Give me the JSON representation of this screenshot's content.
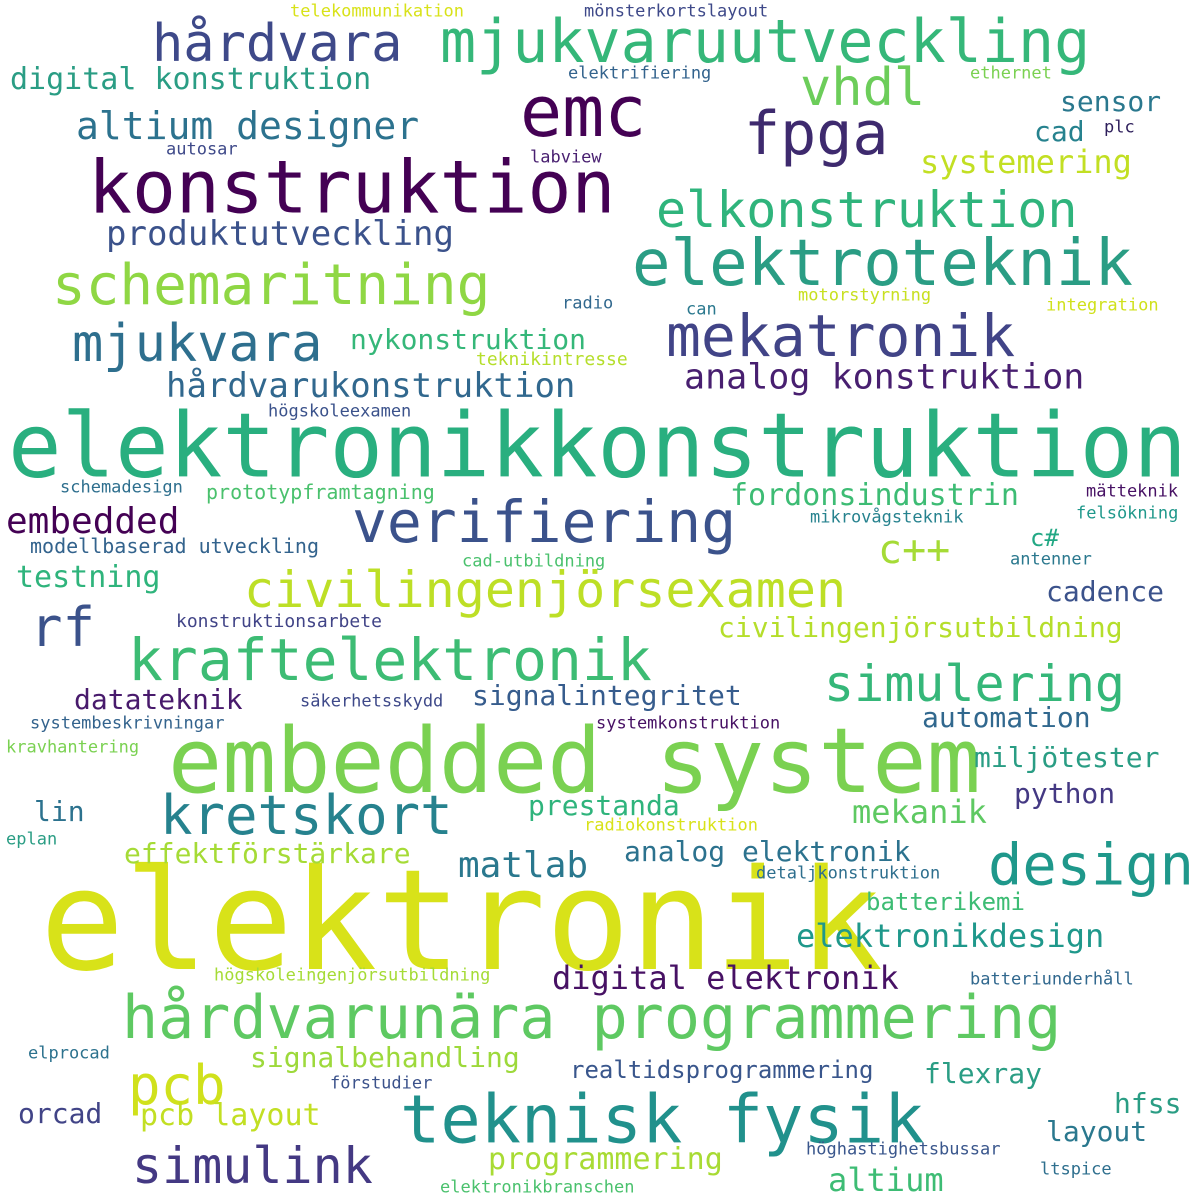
{
  "words": [
    {
      "text": "elektronik",
      "color": "#d8e219"
    },
    {
      "text": "elektronikkonstruktion",
      "color": "#29af7f"
    },
    {
      "text": "embedded system",
      "color": "#7ad151"
    },
    {
      "text": "konstruktion",
      "color": "#440154"
    },
    {
      "text": "hårdvarunära programmering",
      "color": "#5ec962"
    },
    {
      "text": "teknisk fysik",
      "color": "#21918c"
    },
    {
      "text": "mjukvaruutveckling",
      "color": "#35b779"
    },
    {
      "text": "elektroteknik",
      "color": "#2a9d84"
    },
    {
      "text": "civilingenjörsexamen",
      "color": "#bddf26"
    },
    {
      "text": "kraftelektronik",
      "color": "#3dbc74"
    },
    {
      "text": "verifiering",
      "color": "#3b528b"
    },
    {
      "text": "emc",
      "color": "#440154"
    },
    {
      "text": "mekatronik",
      "color": "#414487"
    },
    {
      "text": "fpga",
      "color": "#3e2a6e"
    },
    {
      "text": "hårdvara",
      "color": "#3e4989"
    },
    {
      "text": "elkonstruktion",
      "color": "#2fb47c"
    },
    {
      "text": "schemaritning",
      "color": "#8fd744"
    },
    {
      "text": "design",
      "color": "#1f988b"
    },
    {
      "text": "kretskort",
      "color": "#26828e"
    },
    {
      "text": "simulink",
      "color": "#443983"
    },
    {
      "text": "vhdl",
      "color": "#6ccd5a"
    },
    {
      "text": "pcb",
      "color": "#d0e11c"
    },
    {
      "text": "mjukvara",
      "color": "#2e6f8e"
    },
    {
      "text": "simulering",
      "color": "#35b779"
    },
    {
      "text": "rf",
      "color": "#3b528b"
    },
    {
      "text": "altium designer",
      "color": "#2c728e"
    },
    {
      "text": "produktutveckling",
      "color": "#3b528b"
    },
    {
      "text": "analog konstruktion",
      "color": "#481f70"
    },
    {
      "text": "hårdvarukonstruktion",
      "color": "#31688e"
    },
    {
      "text": "digital konstruktion",
      "color": "#2a9d84"
    },
    {
      "text": "c++",
      "color": "#a5db36"
    },
    {
      "text": "systemering",
      "color": "#c2df23"
    },
    {
      "text": "embedded",
      "color": "#440154"
    },
    {
      "text": "digital elektronik",
      "color": "#471164"
    },
    {
      "text": "nykonstruktion",
      "color": "#35b779"
    },
    {
      "text": "fordonsindustrin",
      "color": "#3dbc74"
    },
    {
      "text": "testning",
      "color": "#2fb47c"
    },
    {
      "text": "civilingenjörsutbildning",
      "color": "#b5de2b"
    },
    {
      "text": "matlab",
      "color": "#2a788e"
    },
    {
      "text": "elektronikdesign",
      "color": "#1f988b"
    },
    {
      "text": "programmering",
      "color": "#a8db34"
    },
    {
      "text": "analog elektronik",
      "color": "#2c728e"
    },
    {
      "text": "mekanik",
      "color": "#5ec962"
    },
    {
      "text": "effektförstärkare",
      "color": "#a5db36"
    },
    {
      "text": "signalbehandling",
      "color": "#9dd93b"
    },
    {
      "text": "pcb layout",
      "color": "#c2df23"
    },
    {
      "text": "miljötester",
      "color": "#2a9d84"
    },
    {
      "text": "datateknik",
      "color": "#481a6c"
    },
    {
      "text": "signalintegritet",
      "color": "#365c8d"
    },
    {
      "text": "cadence",
      "color": "#3b528b"
    },
    {
      "text": "sensor",
      "color": "#2a788e"
    },
    {
      "text": "automation",
      "color": "#31688e"
    },
    {
      "text": "python",
      "color": "#443983"
    },
    {
      "text": "prestanda",
      "color": "#2fb47c"
    },
    {
      "text": "altium",
      "color": "#3dbc74"
    },
    {
      "text": "orcad",
      "color": "#414487"
    },
    {
      "text": "layout",
      "color": "#2a788e"
    },
    {
      "text": "hfss",
      "color": "#2a9d84"
    },
    {
      "text": "flexray",
      "color": "#2a9d84"
    },
    {
      "text": "realtidsprogrammering",
      "color": "#39568c"
    },
    {
      "text": "batterikemi",
      "color": "#3dbc74"
    },
    {
      "text": "cad",
      "color": "#26828e"
    },
    {
      "text": "lin",
      "color": "#2c728e"
    },
    {
      "text": "c#",
      "color": "#22a884"
    },
    {
      "text": "prototypframtagning",
      "color": "#4ac16d"
    },
    {
      "text": "modellbaserad utveckling",
      "color": "#33638d"
    },
    {
      "text": "konstruktionsarbete",
      "color": "#414487"
    },
    {
      "text": "teknikintresse",
      "color": "#b5de2b"
    },
    {
      "text": "telekommunikation",
      "color": "#d8e219"
    },
    {
      "text": "mönsterkortslayout",
      "color": "#3e4989"
    },
    {
      "text": "elektrifiering",
      "color": "#33638d"
    },
    {
      "text": "ethernet",
      "color": "#7ad151"
    },
    {
      "text": "autosar",
      "color": "#3e4989"
    },
    {
      "text": "labview",
      "color": "#481f70"
    },
    {
      "text": "plc",
      "color": "#2d1e5b"
    },
    {
      "text": "radio",
      "color": "#31688e"
    },
    {
      "text": "can",
      "color": "#2a788e"
    },
    {
      "text": "motorstyrning",
      "color": "#c8e020"
    },
    {
      "text": "integration",
      "color": "#d0e11c"
    },
    {
      "text": "högskoleexamen",
      "color": "#3b528b"
    },
    {
      "text": "schemadesign",
      "color": "#2e6f8e"
    },
    {
      "text": "mätteknik",
      "color": "#471164"
    },
    {
      "text": "mikrovågsteknik",
      "color": "#26828e"
    },
    {
      "text": "felsökning",
      "color": "#1f988b"
    },
    {
      "text": "cad-utbildning",
      "color": "#4ac16d"
    },
    {
      "text": "antenner",
      "color": "#2a788e"
    },
    {
      "text": "säkerhetsskydd",
      "color": "#3e4989"
    },
    {
      "text": "systembeskrivningar",
      "color": "#33638d"
    },
    {
      "text": "systemkonstruktion",
      "color": "#471164"
    },
    {
      "text": "kravhantering",
      "color": "#7ad151"
    },
    {
      "text": "radiokonstruktion",
      "color": "#d8e219"
    },
    {
      "text": "eplan",
      "color": "#2a9d84"
    },
    {
      "text": "detaljkonstruktion",
      "color": "#2e6f8e"
    },
    {
      "text": "högskoleingenjörsutbildning",
      "color": "#a5db36"
    },
    {
      "text": "batteriunderhåll",
      "color": "#31688e"
    },
    {
      "text": "elprocad",
      "color": "#2c728e"
    },
    {
      "text": "förstudier",
      "color": "#3b528b"
    },
    {
      "text": "höghastighetsbussar",
      "color": "#39568c"
    },
    {
      "text": "ltspice",
      "color": "#2e6f8e"
    },
    {
      "text": "elektronikbranschen",
      "color": "#4ac16d"
    }
  ]
}
